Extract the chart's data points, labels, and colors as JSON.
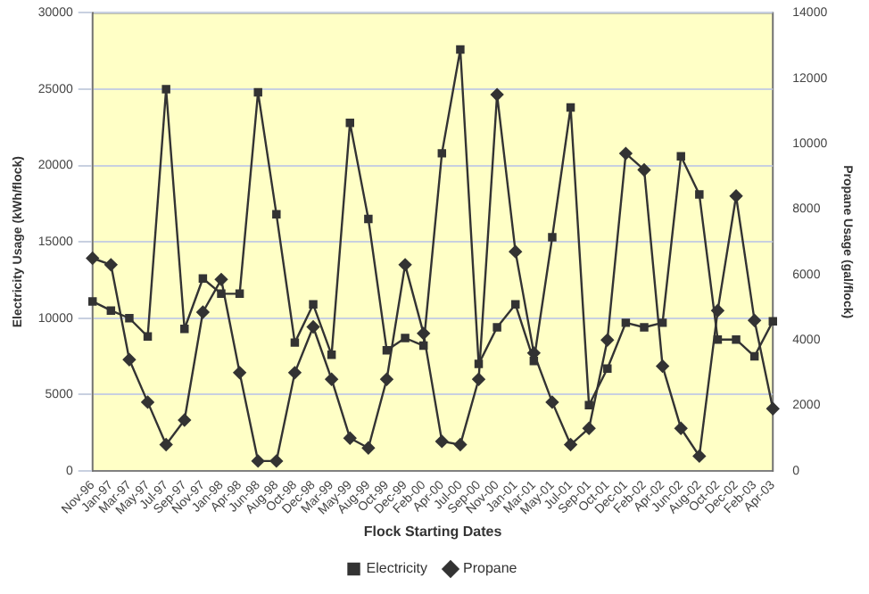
{
  "chart_data": {
    "type": "line",
    "xlabel": "Flock Starting Dates",
    "ylabel": "Electricity Usage (kWh/flock)",
    "y2label": "Propane Usage (gal/flock)",
    "categories": [
      "Nov-96",
      "Jan-97",
      "Mar-97",
      "May-97",
      "Jul-97",
      "Sep-97",
      "Nov-97",
      "Jan-98",
      "Apr-98",
      "Jun-98",
      "Aug-98",
      "Oct-98",
      "Dec-98",
      "Mar-99",
      "May-99",
      "Aug-99",
      "Oct-99",
      "Dec-99",
      "Feb-00",
      "Apr-00",
      "Jul-00",
      "Sep-00",
      "Nov-00",
      "Jan-01",
      "Mar-01",
      "May-01",
      "Jul-01",
      "Sep-01",
      "Oct-01",
      "Dec-01",
      "Feb-02",
      "Apr-02",
      "Jun-02",
      "Aug-02",
      "Oct-02",
      "Dec-02",
      "Feb-03",
      "Apr-03"
    ],
    "series": [
      {
        "name": "Electricity",
        "color": "#333333",
        "marker": "square",
        "values": [
          11100,
          10500,
          10000,
          8800,
          25000,
          9300,
          12600,
          11600,
          11600,
          24800,
          16800,
          8400,
          10900,
          7600,
          22800,
          16500,
          7900,
          8700,
          8200,
          20800,
          27600,
          7000,
          9400,
          10900,
          7200,
          15300,
          23800,
          4300,
          6700,
          9700,
          9400,
          9700,
          20600,
          18100,
          8600,
          8600,
          7500,
          9800
        ]
      },
      {
        "name": "Propane",
        "color": "#333333",
        "marker": "diamond",
        "axis": "y2",
        "values": [
          6500,
          6300,
          3400,
          2100,
          800,
          1550,
          4850,
          5850,
          3000,
          300,
          300,
          3000,
          4400,
          2800,
          1000,
          700,
          2800,
          6300,
          4200,
          900,
          800,
          2800,
          11500,
          6700,
          3600,
          2100,
          800,
          1300,
          4000,
          9700,
          9200,
          3200,
          1300,
          450,
          4900,
          8400,
          4600,
          1900
        ]
      }
    ],
    "ylim": [
      0,
      30000
    ],
    "yticks": [
      0,
      5000,
      10000,
      15000,
      20000,
      25000,
      30000
    ],
    "y2lim": [
      0,
      14000
    ],
    "y2ticks": [
      0,
      2000,
      4000,
      6000,
      8000,
      10000,
      12000,
      14000
    ],
    "grid": "y",
    "legend": "bottom",
    "line_style": "solid"
  }
}
